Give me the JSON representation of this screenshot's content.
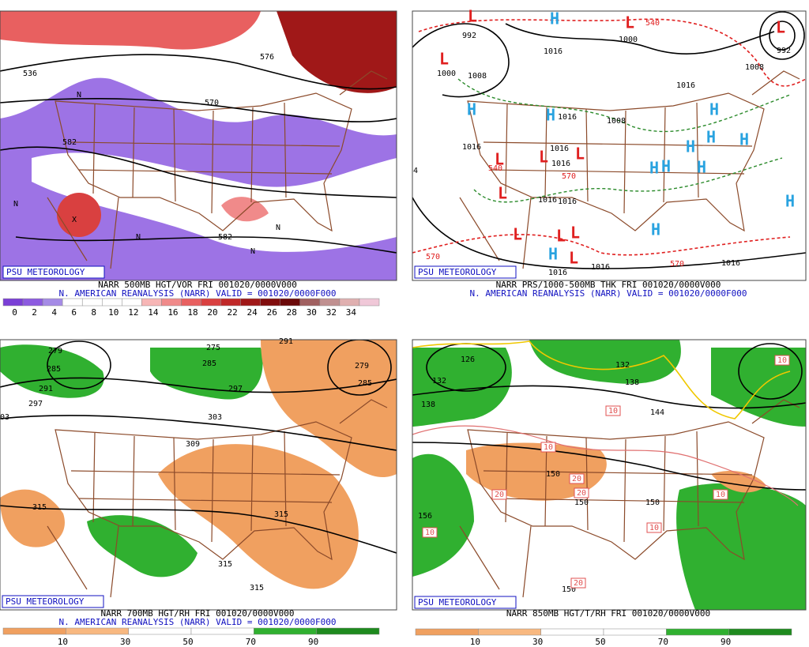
{
  "panels": [
    {
      "label": "PSU METEOROLOGY",
      "title": "NARR 500MB HGT/VOR FRI 001020/0000V000",
      "subtitle": "N. AMERICAN REANALYSIS (NARR) VALID = 001020/0000F000",
      "colorbar": {
        "ticks": [
          0,
          2,
          4,
          6,
          8,
          10,
          12,
          14,
          16,
          18,
          20,
          22,
          24,
          26,
          28,
          30,
          32,
          34
        ],
        "colors": [
          "#7a3fd6",
          "#8c5ae0",
          "#a58be6",
          "#ffffff",
          "#ffffff",
          "#ffffff",
          "#ffffff",
          "#f7b6b6",
          "#f08a8a",
          "#e86060",
          "#d94040",
          "#c02828",
          "#a01818",
          "#800c0c",
          "#6a0808",
          "#a06060",
          "#c09090",
          "#e0b0b0",
          "#f0c8d8"
        ]
      },
      "map_labels": [
        "536",
        "576",
        "570",
        "582",
        "582",
        "N",
        "N",
        "N",
        "N",
        "N",
        "X"
      ]
    },
    {
      "label": "PSU METEOROLOGY",
      "title": "NARR PRS/1000-500MB THK FRI 001020/0000V000",
      "subtitle": "N. AMERICAN REANALYSIS (NARR) VALID = 001020/0000F000",
      "map_labels": [
        "992",
        "1000",
        "1008",
        "1016",
        "1000",
        "540",
        "1016",
        "1008",
        "1016",
        "1016",
        "1016",
        "570",
        "540",
        "1016",
        "1016",
        "1016",
        "1008",
        "992",
        "1016",
        "1016",
        "570",
        "570",
        "1016",
        "4",
        "H",
        "H",
        "H",
        "H",
        "H",
        "H",
        "H",
        "H",
        "H",
        "H",
        "H",
        "H",
        "H",
        "L",
        "L",
        "L",
        "L",
        "L",
        "L",
        "L",
        "L",
        "L",
        "L",
        "L",
        "L"
      ]
    },
    {
      "label": "PSU METEOROLOGY",
      "title": "NARR 700MB HGT/RH FRI 001020/0000V000",
      "subtitle": "N. AMERICAN REANALYSIS (NARR) VALID = 001020/0000F000",
      "colorbar": {
        "ticks": [
          10,
          30,
          50,
          70,
          90
        ],
        "colors": [
          "#f0a060",
          "#f8b880",
          "#ffffff",
          "#ffffff",
          "#30b030",
          "#1e8a1e"
        ]
      },
      "map_labels": [
        "279",
        "285",
        "291",
        "297",
        "03",
        "275",
        "285",
        "297",
        "303",
        "309",
        "315",
        "315",
        "315",
        "315",
        "279",
        "285",
        "291"
      ]
    },
    {
      "label": "PSU METEOROLOGY",
      "title": "NARR 850MB HGT/T/RH FRI 001020/0000V000",
      "colorbar": {
        "ticks": [
          10,
          30,
          50,
          70,
          90
        ],
        "colors": [
          "#f0a060",
          "#f8b880",
          "#ffffff",
          "#ffffff",
          "#30b030",
          "#1e8a1e"
        ]
      },
      "map_labels": [
        "126",
        "132",
        "138",
        "132",
        "138",
        "144",
        "150",
        "156",
        "150",
        "150",
        "150",
        "10",
        "10",
        "10",
        "20",
        "20",
        "20",
        "10",
        "10",
        "10",
        "20"
      ]
    }
  ]
}
